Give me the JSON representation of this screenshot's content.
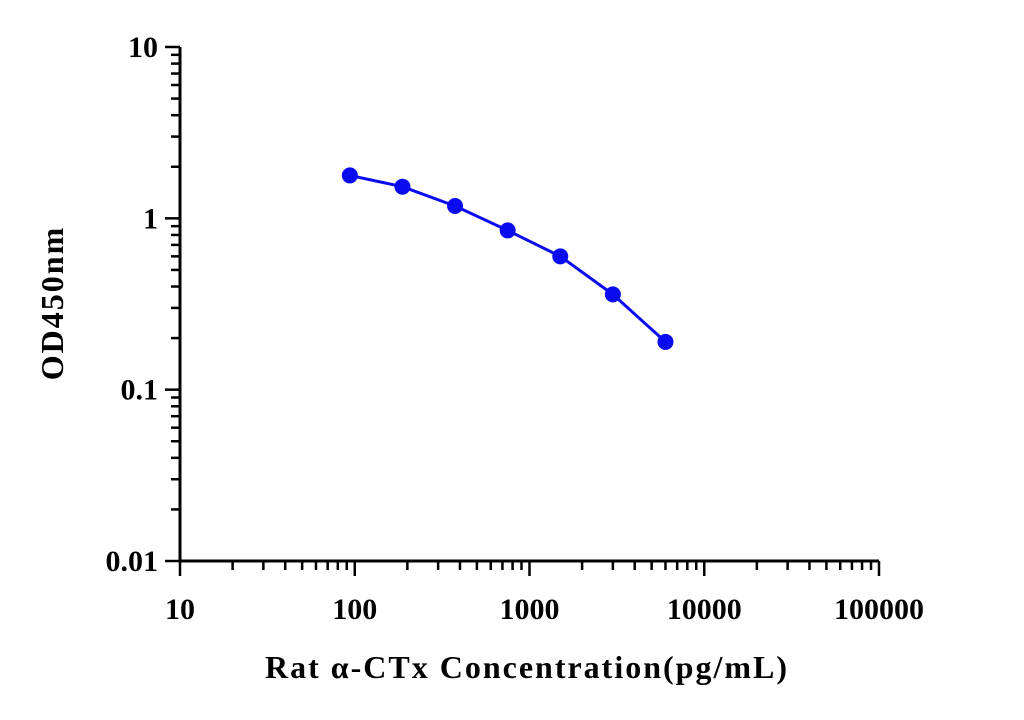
{
  "chart_data": {
    "type": "line",
    "title": "",
    "xlabel": "Rat α-CTx Concentration(pg/mL)",
    "ylabel": "OD450nm",
    "xscale": "log",
    "yscale": "log",
    "xlim": [
      10,
      100000
    ],
    "ylim": [
      0.01,
      10
    ],
    "xticks": [
      10,
      100,
      1000,
      10000,
      100000
    ],
    "xtick_labels": [
      "10",
      "100",
      "1000",
      "10000",
      "100000"
    ],
    "yticks": [
      0.01,
      0.1,
      1,
      10
    ],
    "ytick_labels": [
      "0.01",
      "0.1",
      "1",
      "10"
    ],
    "grid": false,
    "legend": "none",
    "series": [
      {
        "x": [
          93.75,
          187.5,
          375,
          750,
          1500,
          3000,
          6000
        ],
        "y": [
          1.78,
          1.53,
          1.18,
          0.85,
          0.6,
          0.36,
          0.19
        ],
        "color": "#0b0bf0",
        "marker": "circle"
      }
    ]
  }
}
